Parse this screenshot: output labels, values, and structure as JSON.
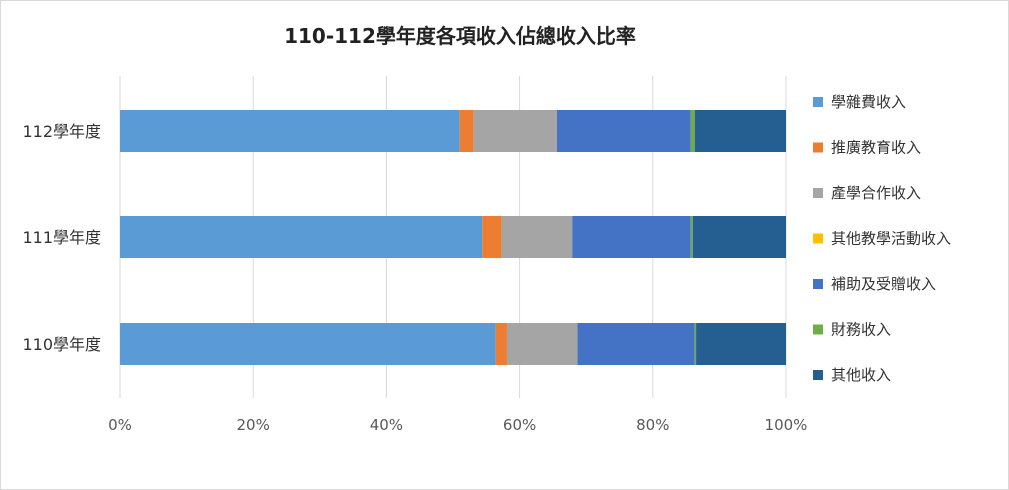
{
  "chart_data": {
    "type": "bar",
    "orientation": "horizontal",
    "stacked": "percent",
    "title": "110-112學年度各項收入佔總收入比率",
    "categories": [
      "112學年度",
      "111學年度",
      "110學年度"
    ],
    "xlim": [
      0,
      100
    ],
    "xticks": [
      "0%",
      "20%",
      "40%",
      "60%",
      "80%",
      "100%"
    ],
    "grid": true,
    "legend_position": "right",
    "series": [
      {
        "name": "學雜費收入",
        "color": "#5b9bd5",
        "values": [
          51.0,
          54.4,
          56.4
        ]
      },
      {
        "name": "推廣教育收入",
        "color": "#ed7d31",
        "values": [
          2.1,
          2.9,
          1.7
        ]
      },
      {
        "name": "產學合作收入",
        "color": "#a5a5a5",
        "values": [
          12.5,
          10.6,
          10.6
        ]
      },
      {
        "name": "其他教學活動收入",
        "color": "#ffc000",
        "values": [
          0.0,
          0.0,
          0.0
        ]
      },
      {
        "name": "補助及受贈收入",
        "color": "#4472c4",
        "values": [
          20.1,
          17.8,
          17.6
        ]
      },
      {
        "name": "財務收入",
        "color": "#70ad47",
        "values": [
          0.6,
          0.3,
          0.2
        ]
      },
      {
        "name": "其他收入",
        "color": "#255e91",
        "values": [
          13.7,
          14.0,
          13.5
        ]
      }
    ]
  }
}
